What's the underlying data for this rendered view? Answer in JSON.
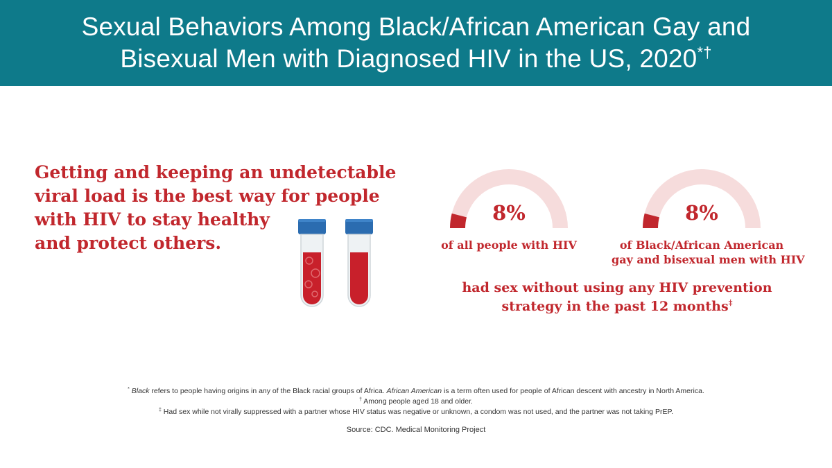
{
  "header": {
    "title_line1": "Sexual Behaviors Among Black/African American Gay and",
    "title_line2": "Bisexual Men with Diagnosed HIV in the US, 2020",
    "title_marks": "*†"
  },
  "intro": {
    "lines": [
      "Getting and keeping an undetectable",
      "viral load is the best way for people",
      "with HIV to stay healthy",
      "and protect others."
    ]
  },
  "stats": [
    {
      "value_pct": 8,
      "label": "8%",
      "caption_lines": [
        "of all people with HIV"
      ]
    },
    {
      "value_pct": 8,
      "label": "8%",
      "caption_lines": [
        "of Black/African American",
        "gay and bisexual men with HIV"
      ]
    }
  ],
  "summary": {
    "line1": "had sex without using any HIV prevention",
    "line2": "strategy in the past 12 months",
    "mark": "‡"
  },
  "footnotes": {
    "star_mark": "*",
    "star_italic_black": "Black",
    "star_text_a": " refers to people having origins in any of the Black racial groups of Africa. ",
    "star_italic_aa": "African American",
    "star_text_b": " is a term often used for people of African descent with ancestry in North America.",
    "dagger_mark": "†",
    "dagger_text": " Among people aged 18 and older.",
    "ddagger_mark": "‡",
    "ddagger_text": " Had sex while not virally suppressed with a partner whose HIV status was negative or unknown, a condom was not used, and the partner was not taking PrEP.",
    "source": "Source: CDC. Medical Monitoring Project"
  },
  "colors": {
    "header_bg": "#0e7a8a",
    "accent_red": "#c1272d",
    "gauge_track": "#f6dcdc",
    "tube_cap": "#2b6cb0"
  }
}
